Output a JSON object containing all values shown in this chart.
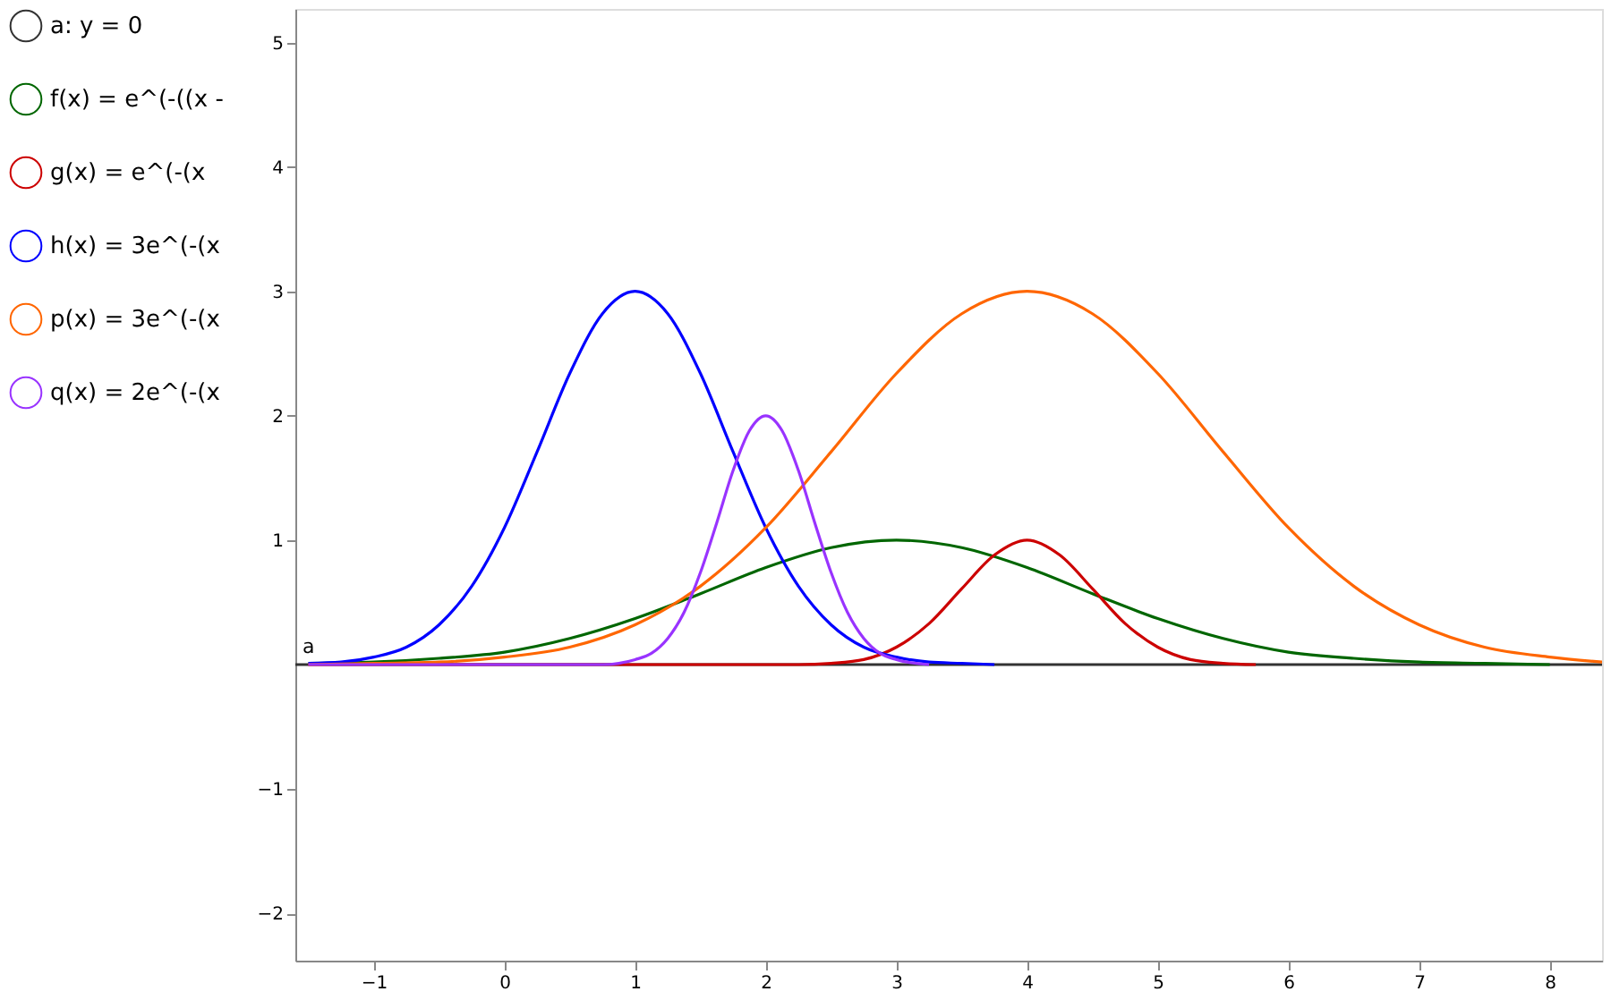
{
  "chart_data": {
    "type": "line",
    "xlim": [
      -1.6,
      8.4
    ],
    "ylim": [
      -2.38,
      5.27
    ],
    "xticks": [
      {
        "value": -1,
        "label": "−1"
      },
      0,
      1,
      2,
      3,
      4,
      5,
      6,
      7,
      8
    ],
    "yticks": [
      {
        "value": -2,
        "label": "−2"
      },
      {
        "value": -1,
        "label": "−1"
      },
      1,
      2,
      3,
      4,
      5
    ],
    "grid": false,
    "legend": "left",
    "marker": "none",
    "line_style": "solid",
    "annotations": [
      "a"
    ],
    "series": [
      {
        "name": "a: y = 0",
        "color": "#333333",
        "x": [
          -1.6,
          8.4
        ],
        "values": [
          0,
          0
        ]
      },
      {
        "name": "f(x) = e^(-((x -",
        "color": "#006600",
        "x": [
          -1.5,
          -1,
          -0.5,
          0,
          0.5,
          1,
          1.5,
          2,
          2.5,
          3,
          3.5,
          4,
          4.5,
          5,
          5.5,
          6,
          6.5,
          7,
          7.5,
          8
        ],
        "values": [
          0.01,
          0.02,
          0.05,
          0.1,
          0.21,
          0.37,
          0.57,
          0.78,
          0.94,
          1,
          0.94,
          0.78,
          0.57,
          0.37,
          0.21,
          0.1,
          0.05,
          0.02,
          0.01,
          0
        ]
      },
      {
        "name": "g(x) = e^(-(x",
        "color": "#cc0000",
        "x": [
          -1.5,
          2,
          2.25,
          2.5,
          2.75,
          3,
          3.25,
          3.5,
          3.75,
          4,
          4.25,
          4.5,
          4.75,
          5,
          5.25,
          5.5,
          5.75
        ],
        "values": [
          0,
          0,
          0,
          0.01,
          0.04,
          0.14,
          0.33,
          0.61,
          0.88,
          1,
          0.88,
          0.61,
          0.33,
          0.14,
          0.04,
          0.01,
          0
        ]
      },
      {
        "name": "h(x) = 3e^(-(x",
        "color": "#0000ff",
        "x": [
          -1.5,
          -1.25,
          -1,
          -0.75,
          -0.5,
          -0.25,
          0,
          0.25,
          0.5,
          0.75,
          1,
          1.25,
          1.5,
          1.75,
          2,
          2.25,
          2.5,
          2.75,
          3,
          3.25,
          3.5,
          3.75
        ],
        "values": [
          0.01,
          0.02,
          0.06,
          0.14,
          0.32,
          0.63,
          1.1,
          1.71,
          2.34,
          2.82,
          3,
          2.82,
          2.34,
          1.71,
          1.1,
          0.63,
          0.32,
          0.14,
          0.06,
          0.02,
          0.01,
          0
        ]
      },
      {
        "name": "p(x) = 3e^(-(x",
        "color": "#ff6600",
        "x": [
          -1.5,
          -1,
          -0.5,
          0,
          0.5,
          1,
          1.5,
          2,
          2.5,
          3,
          3.5,
          4,
          4.5,
          5,
          5.5,
          6,
          6.5,
          7,
          7.5,
          8,
          8.4
        ],
        "values": [
          0,
          0.01,
          0.02,
          0.06,
          0.14,
          0.32,
          0.63,
          1.1,
          1.71,
          2.34,
          2.82,
          3,
          2.82,
          2.34,
          1.71,
          1.1,
          0.63,
          0.32,
          0.14,
          0.06,
          0.02
        ]
      },
      {
        "name": "q(x) = 2e^(-(x",
        "color": "#9933ff",
        "x": [
          -1.5,
          0.75,
          1,
          1.125,
          1.25,
          1.375,
          1.5,
          1.625,
          1.75,
          1.875,
          2,
          2.125,
          2.25,
          2.375,
          2.5,
          2.625,
          2.75,
          2.875,
          3,
          3.25
        ],
        "values": [
          0,
          0,
          0.04,
          0.09,
          0.21,
          0.42,
          0.74,
          1.14,
          1.56,
          1.88,
          2,
          1.88,
          1.56,
          1.14,
          0.74,
          0.42,
          0.21,
          0.09,
          0.04,
          0
        ]
      }
    ]
  }
}
